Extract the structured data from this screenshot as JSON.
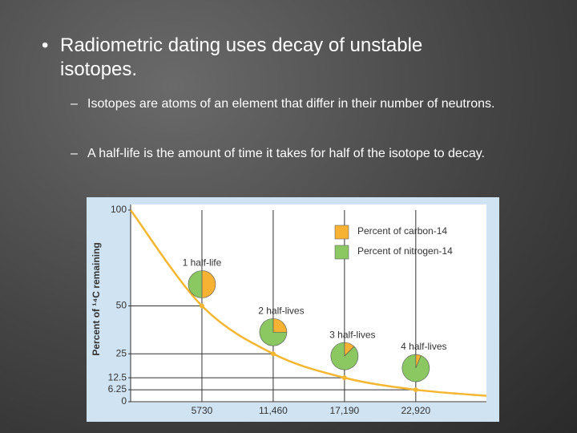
{
  "bullets": [
    {
      "text": "Radiometric dating uses decay of unstable isotopes.",
      "sub": [
        "Isotopes are atoms of an element that differ in their number of neutrons.",
        "A half-life is the amount of time it takes for half of the isotope to decay."
      ]
    }
  ],
  "chart_data": {
    "type": "line",
    "y_label": "Percent of ¹⁴C remaining",
    "x": [
      0,
      5730,
      11460,
      17190,
      22920,
      28600
    ],
    "values": [
      100,
      50,
      25,
      12.5,
      6.25,
      3.1
    ],
    "color": "#f5b731",
    "xlim": [
      0,
      28600
    ],
    "ylim": [
      0,
      100
    ],
    "xticks": [
      5730,
      {
        "value": 11460,
        "label": "11,460"
      },
      {
        "value": 17190,
        "label": "17,190"
      },
      {
        "value": 22920,
        "label": "22,920"
      }
    ],
    "yticks": [
      100,
      50,
      25,
      12.5,
      6.25,
      0
    ],
    "legend": [
      {
        "name": "Percent of carbon-14",
        "color": "#f7b233"
      },
      {
        "name": "Percent of nitrogen-14",
        "color": "#8cc862"
      }
    ],
    "pies": [
      {
        "label": "1 half-life",
        "x": 5730,
        "values": [
          50,
          50
        ]
      },
      {
        "label": "2 half-lives",
        "x": 11460,
        "values": [
          25,
          75
        ]
      },
      {
        "label": "3 half-lives",
        "x": 17190,
        "values": [
          12.5,
          87.5
        ]
      },
      {
        "label": "4 half-lives",
        "x": 22920,
        "values": [
          6.25,
          93.75
        ]
      }
    ]
  }
}
